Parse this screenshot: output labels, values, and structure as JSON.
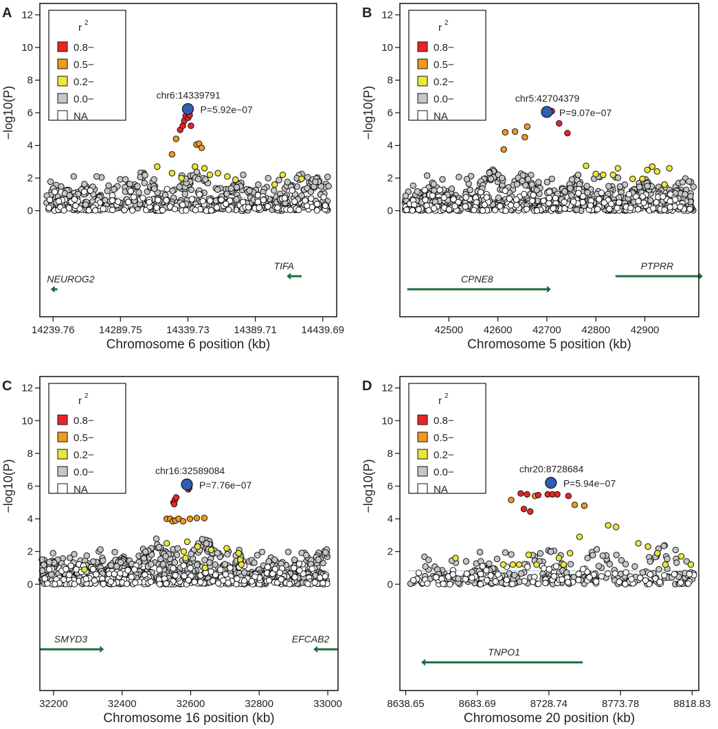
{
  "colors": {
    "lead": "#2f5fb5",
    "r08": "#e8262a",
    "r05": "#f09a1e",
    "r02": "#eae63a",
    "r00": "#c6c6c6",
    "na": "#ffffff",
    "threshold": "#a8d4dc",
    "gene_arrow": "#1a6b3a",
    "gene_label": "#e8262a"
  },
  "chart_data": [
    {
      "panel": "A",
      "type": "scatter",
      "xlabel": "Chromosome 6 position (kb)",
      "ylabel": "−log10(P)",
      "xlim": [
        14230,
        14450
      ],
      "ylim": [
        -6.5,
        12.7
      ],
      "xticks": [
        14239.76,
        14289.75,
        14339.73,
        14389.71,
        14439.69
      ],
      "xtick_labels": [
        "14239.76",
        "14289.75",
        "14339.73",
        "14389.71",
        "14439.69"
      ],
      "yticks": [
        0,
        2,
        4,
        6,
        8,
        10,
        12
      ],
      "threshold": 0.82,
      "legend": {
        "title": "r",
        "title_sup": "2",
        "items": [
          "0.8−",
          "0.5−",
          "0.2−",
          "0.0−",
          "NA"
        ],
        "item_keys": [
          "r08",
          "r05",
          "r02",
          "r00",
          "na"
        ]
      },
      "lead": {
        "x": 14339.73,
        "y": 6.23,
        "label": "chr6:14339791",
        "p_label": "P=5.92e−07"
      },
      "points": {
        "r08": [
          [
            14334,
            4.95
          ],
          [
            14336,
            5.2
          ],
          [
            14337,
            5.5
          ],
          [
            14338,
            5.8
          ],
          [
            14340,
            5.7
          ],
          [
            14341,
            5.85
          ],
          [
            14342,
            5.2
          ]
        ],
        "r05": [
          [
            14328,
            3.45
          ],
          [
            14346,
            4.05
          ],
          [
            14348,
            4.1
          ],
          [
            14350,
            3.85
          ],
          [
            14331,
            4.4
          ]
        ],
        "r02": [
          [
            14317,
            2.7
          ],
          [
            14328,
            2.3
          ],
          [
            14345,
            2.7
          ],
          [
            14352,
            2.6
          ],
          [
            14356,
            2.2
          ],
          [
            14362,
            2.3
          ],
          [
            14369,
            2.1
          ],
          [
            14404,
            1.6
          ],
          [
            14410,
            2.2
          ],
          [
            14424,
            1.95
          ],
          [
            14335,
            2.0
          ],
          [
            14375,
            1.9
          ]
        ],
        "r00": {
          "count": 520,
          "seed": 11,
          "xmin": 14235,
          "xmax": 14444,
          "peaks": [
            [
              14245,
              1.7
            ],
            [
              14265,
              1.75
            ],
            [
              14305,
              2.5
            ],
            [
              14345,
              2.7
            ],
            [
              14378,
              1.9
            ],
            [
              14425,
              2.6
            ],
            [
              14436,
              2.3
            ]
          ]
        },
        "na": {
          "count": 140,
          "seed": 17
        }
      },
      "genes": [
        {
          "name": "NEUROG2",
          "start": 14243,
          "end": 14241,
          "dir": "left",
          "level": 1
        },
        {
          "name": "TIFA",
          "start": 14424,
          "end": 14416,
          "dir": "left",
          "level": 0
        }
      ]
    },
    {
      "panel": "B",
      "type": "scatter",
      "xlabel": "Chromosome 5 position (kb)",
      "ylabel": "−log10(P)",
      "xlim": [
        42400,
        43010
      ],
      "ylim": [
        -6.5,
        12.7
      ],
      "xticks": [
        42500,
        42600,
        42700,
        42800,
        42900
      ],
      "xtick_labels": [
        "42500",
        "42600",
        "42700",
        "42800",
        "42900"
      ],
      "yticks": [
        0,
        2,
        4,
        6,
        8,
        10,
        12
      ],
      "threshold": 0.0,
      "legend": {
        "title": "r",
        "title_sup": "2",
        "items": [
          "0.8−",
          "0.5−",
          "0.2−",
          "0.0−",
          "NA"
        ],
        "item_keys": [
          "r08",
          "r05",
          "r02",
          "r00",
          "na"
        ]
      },
      "lead": {
        "x": 42700,
        "y": 6.05,
        "label": "chr5:42704379",
        "p_label": "P=9.07e−07"
      },
      "points": {
        "r08": [
          [
            42710,
            6.1
          ],
          [
            42725,
            5.35
          ],
          [
            42742,
            4.75
          ]
        ],
        "r05": [
          [
            42612,
            3.75
          ],
          [
            42615,
            4.8
          ],
          [
            42635,
            4.85
          ],
          [
            42660,
            5.15
          ],
          [
            42655,
            4.5
          ]
        ],
        "r02": [
          [
            42780,
            2.75
          ],
          [
            42800,
            2.25
          ],
          [
            42815,
            2.2
          ],
          [
            42835,
            2.2
          ],
          [
            42845,
            2.6
          ],
          [
            42875,
            1.95
          ],
          [
            42895,
            1.95
          ],
          [
            42905,
            2.5
          ],
          [
            42915,
            2.7
          ],
          [
            42925,
            2.4
          ],
          [
            42940,
            1.6
          ],
          [
            42950,
            2.6
          ]
        ],
        "r00": {
          "count": 700,
          "seed": 23,
          "xmin": 42408,
          "xmax": 43000,
          "peaks": [
            [
              42590,
              2.8
            ],
            [
              42650,
              2.4
            ],
            [
              42760,
              2.2
            ],
            [
              42900,
              1.9
            ],
            [
              42480,
              1.5
            ]
          ]
        },
        "na": {
          "count": 190,
          "seed": 29
        }
      },
      "genes": [
        {
          "name": "CPNE8",
          "start": 42415,
          "end": 42700,
          "dir": "right",
          "level": 1
        },
        {
          "name": "PTPRR",
          "start": 42840,
          "end": 43010,
          "dir": "left",
          "level": 0
        }
      ]
    },
    {
      "panel": "C",
      "type": "scatter",
      "xlabel": "Chromosome 16 position (kb)",
      "ylabel": "−log10(P)",
      "xlim": [
        32160,
        33030
      ],
      "ylim": [
        -6.5,
        12.7
      ],
      "xticks": [
        32200,
        32400,
        32600,
        32800,
        33000
      ],
      "xtick_labels": [
        "32200",
        "32400",
        "32600",
        "32800",
        "33000"
      ],
      "yticks": [
        0,
        2,
        4,
        6,
        8,
        10,
        12
      ],
      "threshold": 0.82,
      "legend": {
        "title": "r",
        "title_sup": "2",
        "items": [
          "0.8−",
          "0.5−",
          "0.2−",
          "0.0−",
          "NA"
        ],
        "item_keys": [
          "r08",
          "r05",
          "r02",
          "r00",
          "na"
        ]
      },
      "lead": {
        "x": 32589,
        "y": 6.1,
        "label": "chr16:32589084",
        "p_label": "P=7.76e−07"
      },
      "points": {
        "r08": [
          [
            32550,
            5.0
          ],
          [
            32554,
            5.15
          ],
          [
            32558,
            5.3
          ],
          [
            32593,
            5.8
          ],
          [
            32596,
            5.9
          ],
          [
            32552,
            4.9
          ]
        ],
        "r05": [
          [
            32530,
            4.0
          ],
          [
            32540,
            4.0
          ],
          [
            32548,
            3.85
          ],
          [
            32556,
            3.9
          ],
          [
            32565,
            4.0
          ],
          [
            32578,
            3.85
          ],
          [
            32598,
            4.0
          ],
          [
            32618,
            4.05
          ],
          [
            32640,
            4.05
          ]
        ],
        "r02": [
          [
            32530,
            2.5
          ],
          [
            32580,
            2.0
          ],
          [
            32590,
            2.6
          ],
          [
            32620,
            2.3
          ],
          [
            32660,
            2.1
          ],
          [
            32705,
            2.2
          ],
          [
            32740,
            1.9
          ],
          [
            32745,
            1.5
          ],
          [
            32748,
            1.2
          ],
          [
            32585,
            1.6
          ],
          [
            32642,
            1.0
          ],
          [
            32290,
            0.9
          ]
        ],
        "r00": {
          "count": 900,
          "seed": 31,
          "xmin": 32165,
          "xmax": 33000,
          "peaks": [
            [
              32500,
              2.8
            ],
            [
              32640,
              3.1
            ],
            [
              32400,
              1.8
            ],
            [
              32300,
              1.3
            ],
            [
              32850,
              1.1
            ],
            [
              32990,
              2.3
            ]
          ]
        },
        "na": {
          "count": 260,
          "seed": 37
        }
      },
      "genes": [
        {
          "name": "SMYD3",
          "start": 32160,
          "end": 32335,
          "dir": "right",
          "level": 0
        },
        {
          "name": "EFCAB2",
          "start": 33030,
          "end": 32970,
          "dir": "left",
          "level": 0
        }
      ]
    },
    {
      "panel": "D",
      "type": "scatter",
      "xlabel": "Chromosome 20 position (kb)",
      "ylabel": "−log10(P)",
      "xlim": [
        8635,
        8823
      ],
      "ylim": [
        -6.5,
        12.7
      ],
      "xticks": [
        8638.65,
        8683.69,
        8728.74,
        8773.78,
        8818.83
      ],
      "xtick_labels": [
        "8638.65",
        "8683.69",
        "8728.74",
        "8773.78",
        "8818.83"
      ],
      "yticks": [
        0,
        2,
        4,
        6,
        8,
        10,
        12
      ],
      "threshold": 0.82,
      "legend": {
        "title": "r",
        "title_sup": "2",
        "items": [
          "0.8−",
          "0.5−",
          "0.2−",
          "0.0−",
          "NA"
        ],
        "item_keys": [
          "r08",
          "r05",
          "r02",
          "r00",
          "na"
        ]
      },
      "lead": {
        "x": 8730,
        "y": 6.2,
        "label": "chr20:8728684",
        "p_label": "P=5.94e−07"
      },
      "points": {
        "r08": [
          [
            8711,
            5.55
          ],
          [
            8713,
            4.6
          ],
          [
            8715,
            5.5
          ],
          [
            8717,
            4.45
          ],
          [
            8728,
            5.5
          ],
          [
            8731,
            5.5
          ],
          [
            8734,
            5.5
          ],
          [
            8741,
            5.4
          ],
          [
            8722,
            5.45
          ]
        ],
        "r05": [
          [
            8705,
            5.15
          ],
          [
            8720,
            5.4
          ],
          [
            8745,
            4.85
          ],
          [
            8751,
            4.8
          ]
        ],
        "r02": [
          [
            8670,
            1.6
          ],
          [
            8700,
            1.2
          ],
          [
            8706,
            1.2
          ],
          [
            8710,
            1.2
          ],
          [
            8716,
            1.8
          ],
          [
            8721,
            1.2
          ],
          [
            8735,
            1.6
          ],
          [
            8738,
            1.2
          ],
          [
            8742,
            1.9
          ],
          [
            8748,
            2.9
          ],
          [
            8766,
            3.6
          ],
          [
            8771,
            3.5
          ],
          [
            8785,
            2.5
          ],
          [
            8791,
            2.3
          ],
          [
            8797,
            1.9
          ],
          [
            8802,
            1.2
          ],
          [
            8812,
            1.7
          ],
          [
            8818,
            1.2
          ]
        ],
        "r00": {
          "count": 230,
          "seed": 41,
          "xmin": 8640,
          "xmax": 8820,
          "peaks": [
            [
              8725,
              2.6
            ],
            [
              8760,
              2.4
            ],
            [
              8800,
              2.6
            ],
            [
              8690,
              1.2
            ]
          ]
        },
        "na": {
          "count": 120,
          "seed": 43
        }
      },
      "genes": [
        {
          "name": "TNPO1",
          "start": 8750,
          "end": 8651,
          "dir": "left",
          "level": 1
        }
      ]
    }
  ]
}
